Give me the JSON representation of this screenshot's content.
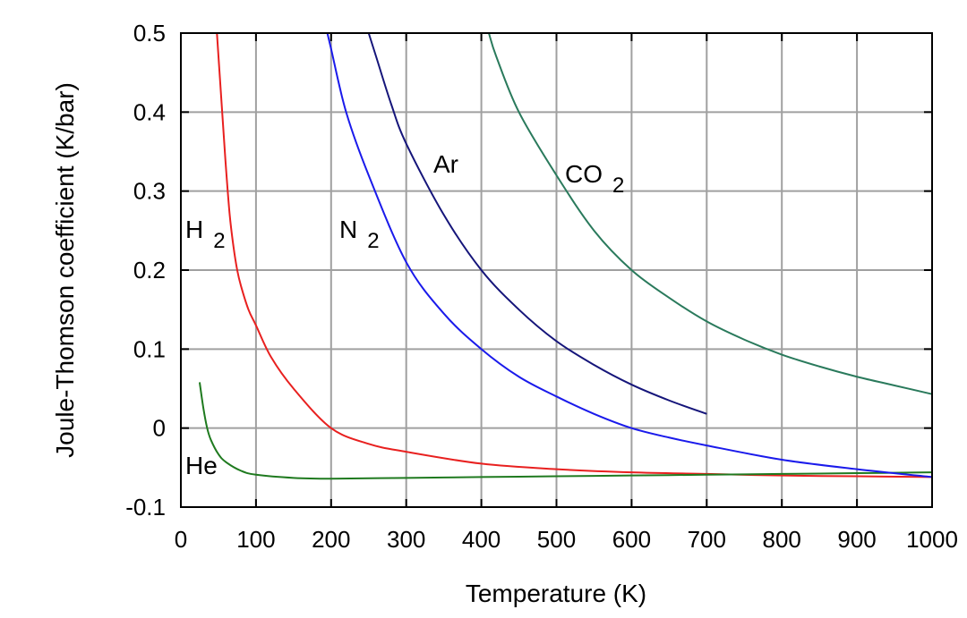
{
  "chart_data": {
    "type": "line",
    "title": "",
    "xlabel": "Temperature (K)",
    "ylabel": "Joule-Thomson coefficient (K/bar)",
    "xlim": [
      0,
      1000
    ],
    "ylim": [
      -0.1,
      0.5
    ],
    "grid": true,
    "x_ticks": [
      0,
      100,
      200,
      300,
      400,
      500,
      600,
      700,
      800,
      900,
      1000
    ],
    "x_tick_labels": [
      "0",
      "100",
      "200",
      "300",
      "400",
      "500",
      "600",
      "700",
      "800",
      "900",
      "1000"
    ],
    "y_ticks": [
      -0.1,
      0,
      0.1,
      0.2,
      0.3,
      0.4,
      0.5
    ],
    "y_tick_labels": [
      "-0.1",
      "0",
      "0.1",
      "0.2",
      "0.3",
      "0.4",
      "0.5"
    ],
    "series": [
      {
        "name": "H2",
        "label": "H",
        "label_sub": "2",
        "color": "#e8201f",
        "x": [
          48,
          55,
          60,
          65,
          70,
          75,
          80,
          90,
          100,
          120,
          150,
          200,
          250,
          300,
          400,
          500,
          600,
          700,
          800,
          900,
          1000
        ],
        "y": [
          0.5,
          0.4,
          0.33,
          0.27,
          0.23,
          0.2,
          0.18,
          0.15,
          0.13,
          0.09,
          0.05,
          0.0,
          -0.02,
          -0.03,
          -0.045,
          -0.052,
          -0.056,
          -0.058,
          -0.06,
          -0.061,
          -0.062
        ]
      },
      {
        "name": "He",
        "label": "He",
        "label_sub": "",
        "color": "#1f7a1f",
        "x": [
          25,
          30,
          35,
          40,
          50,
          60,
          80,
          100,
          150,
          200,
          300,
          400,
          500,
          600,
          700,
          800,
          900,
          1000
        ],
        "y": [
          0.058,
          0.025,
          0.0,
          -0.015,
          -0.033,
          -0.043,
          -0.054,
          -0.059,
          -0.063,
          -0.064,
          -0.063,
          -0.062,
          -0.061,
          -0.06,
          -0.059,
          -0.058,
          -0.057,
          -0.056
        ]
      },
      {
        "name": "N2",
        "label": "N",
        "label_sub": "2",
        "color": "#1a1aeb",
        "x": [
          195,
          200,
          220,
          250,
          300,
          350,
          400,
          450,
          500,
          550,
          600,
          650,
          700,
          800,
          900,
          1000
        ],
        "y": [
          0.5,
          0.48,
          0.4,
          0.32,
          0.21,
          0.145,
          0.1,
          0.065,
          0.04,
          0.018,
          0.0,
          -0.012,
          -0.022,
          -0.04,
          -0.052,
          -0.062
        ]
      },
      {
        "name": "Ar",
        "label": "Ar",
        "label_sub": "",
        "color": "#15157a",
        "x": [
          250,
          260,
          280,
          300,
          350,
          400,
          450,
          500,
          550,
          600,
          650,
          700
        ],
        "y": [
          0.5,
          0.47,
          0.41,
          0.36,
          0.27,
          0.2,
          0.15,
          0.11,
          0.08,
          0.055,
          0.035,
          0.018
        ]
      },
      {
        "name": "CO2",
        "label": "CO",
        "label_sub": "2",
        "color": "#2a7a5c",
        "x": [
          410,
          420,
          450,
          500,
          550,
          600,
          650,
          700,
          750,
          800,
          850,
          900,
          950,
          1000
        ],
        "y": [
          0.5,
          0.47,
          0.4,
          0.32,
          0.25,
          0.2,
          0.165,
          0.135,
          0.112,
          0.093,
          0.078,
          0.065,
          0.054,
          0.043
        ]
      }
    ]
  }
}
